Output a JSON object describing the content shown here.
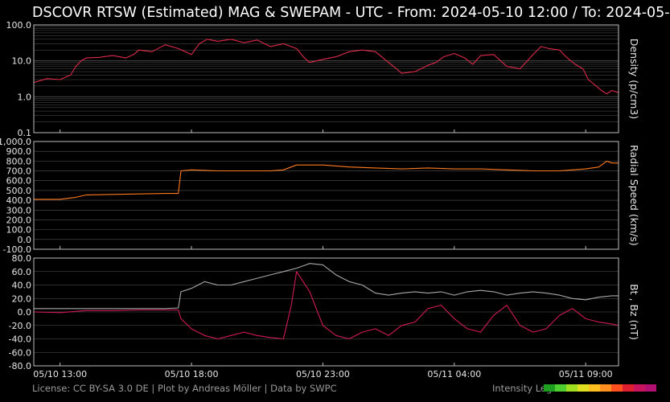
{
  "title": "DSCOVR RTSW (Estimated) MAG & SWEPAM - UTC - From: 2024-05-10 12:00  /  To: 2024-05-",
  "footer": "License: CC BY-SA 3.0 DE | Plot by Andreas Möller | Data by SWPC",
  "legend": {
    "label": "Intensity Legend:",
    "colors": [
      "#1f9f1f",
      "#4fcf2f",
      "#9fdf1f",
      "#dfdf1f",
      "#ffbf1f",
      "#ff8f1f",
      "#ff4f1f",
      "#df1f2f",
      "#c8145f",
      "#b0106f"
    ]
  },
  "colors": {
    "background": "#000000",
    "grid": "#555555",
    "frame": "#bdbdbd",
    "bt": "#a8a8a8"
  },
  "chart_data": [
    {
      "type": "line",
      "panel": "density",
      "ylabel": "Density (p/cm3)",
      "yscale": "log",
      "ylim": [
        0.1,
        100
      ],
      "yticks": [
        "100.0",
        "10.0",
        "1.0",
        "0.1"
      ],
      "xlim_hours": [
        12,
        34.25
      ],
      "series": [
        {
          "points": [
            [
              12.0,
              2.5
            ],
            [
              12.5,
              3.2
            ],
            [
              13.0,
              3.0
            ],
            [
              13.4,
              4.0
            ],
            [
              13.6,
              7.0
            ],
            [
              13.8,
              10.0
            ],
            [
              14.0,
              12.0
            ],
            [
              14.5,
              12.5
            ],
            [
              15.0,
              14.0
            ],
            [
              15.5,
              12.0
            ],
            [
              15.8,
              15.0
            ],
            [
              16.0,
              20.0
            ],
            [
              16.5,
              18.0
            ],
            [
              17.0,
              28.0
            ],
            [
              17.5,
              22.0
            ],
            [
              18.0,
              15.0
            ],
            [
              18.3,
              30.0
            ],
            [
              18.6,
              40.0
            ],
            [
              19.0,
              35.0
            ],
            [
              19.5,
              40.0
            ],
            [
              20.0,
              32.0
            ],
            [
              20.5,
              38.0
            ],
            [
              21.0,
              25.0
            ],
            [
              21.5,
              30.0
            ],
            [
              22.0,
              22.0
            ],
            [
              22.3,
              12.0
            ],
            [
              22.5,
              9.0
            ],
            [
              23.0,
              11.0
            ],
            [
              23.5,
              13.0
            ],
            [
              24.0,
              18.0
            ],
            [
              24.5,
              20.0
            ],
            [
              25.0,
              18.0
            ],
            [
              25.5,
              9.0
            ],
            [
              25.8,
              6.0
            ],
            [
              26.0,
              4.5
            ],
            [
              26.5,
              5.0
            ],
            [
              27.0,
              7.5
            ],
            [
              27.3,
              9.0
            ],
            [
              27.6,
              13.0
            ],
            [
              28.0,
              16.0
            ],
            [
              28.4,
              12.0
            ],
            [
              28.7,
              8.0
            ],
            [
              29.0,
              14.0
            ],
            [
              29.5,
              15.0
            ],
            [
              30.0,
              7.0
            ],
            [
              30.5,
              6.0
            ],
            [
              31.0,
              15.0
            ],
            [
              31.3,
              25.0
            ],
            [
              31.6,
              22.0
            ],
            [
              32.0,
              20.0
            ],
            [
              32.3,
              12.0
            ],
            [
              32.6,
              8.0
            ],
            [
              32.9,
              6.0
            ],
            [
              33.1,
              3.0
            ],
            [
              33.4,
              2.0
            ],
            [
              33.6,
              1.5
            ],
            [
              33.8,
              1.2
            ],
            [
              34.0,
              1.5
            ],
            [
              34.25,
              1.3
            ]
          ]
        }
      ]
    },
    {
      "type": "line",
      "panel": "speed",
      "ylabel": "Radial Speed (km/s)",
      "ylim": [
        -100,
        1000
      ],
      "yticks": [
        "1,000.0",
        "900.0",
        "800.0",
        "700.0",
        "600.0",
        "500.0",
        "400.0",
        "300.0",
        "200.0",
        "100.0",
        "0.0",
        "-100.0"
      ],
      "xlim_hours": [
        12,
        34.25
      ],
      "series": [
        {
          "points": [
            [
              12.0,
              410
            ],
            [
              13.0,
              410
            ],
            [
              13.6,
              430
            ],
            [
              14.0,
              455
            ],
            [
              15.0,
              460
            ],
            [
              16.0,
              465
            ],
            [
              17.0,
              470
            ],
            [
              17.5,
              470
            ],
            [
              17.6,
              700
            ],
            [
              18.0,
              710
            ],
            [
              19.0,
              700
            ],
            [
              20.0,
              700
            ],
            [
              21.0,
              700
            ],
            [
              21.5,
              710
            ],
            [
              22.0,
              760
            ],
            [
              23.0,
              760
            ],
            [
              24.0,
              740
            ],
            [
              25.0,
              730
            ],
            [
              26.0,
              720
            ],
            [
              27.0,
              730
            ],
            [
              28.0,
              720
            ],
            [
              29.0,
              720
            ],
            [
              30.0,
              710
            ],
            [
              31.0,
              700
            ],
            [
              32.0,
              700
            ],
            [
              32.5,
              710
            ],
            [
              33.0,
              720
            ],
            [
              33.5,
              740
            ],
            [
              33.8,
              800
            ],
            [
              34.0,
              780
            ],
            [
              34.25,
              780
            ]
          ]
        }
      ]
    },
    {
      "type": "line",
      "panel": "magnetic",
      "ylabel": "Bt , Bz (nT)",
      "ylim": [
        -80,
        80
      ],
      "yticks": [
        "80.0",
        "60.0",
        "40.0",
        "20.0",
        "0.0",
        "-20.0",
        "-40.0",
        "-60.0",
        "-80.0"
      ],
      "xlim_hours": [
        12,
        34.25
      ],
      "series": [
        {
          "name": "Bt",
          "points": [
            [
              12.0,
              5
            ],
            [
              13.0,
              5
            ],
            [
              14.0,
              5
            ],
            [
              15.0,
              5
            ],
            [
              16.0,
              5
            ],
            [
              17.0,
              5
            ],
            [
              17.5,
              6
            ],
            [
              17.6,
              30
            ],
            [
              18.0,
              35
            ],
            [
              18.5,
              45
            ],
            [
              19.0,
              40
            ],
            [
              19.5,
              40
            ],
            [
              20.0,
              45
            ],
            [
              20.5,
              50
            ],
            [
              21.0,
              55
            ],
            [
              21.5,
              60
            ],
            [
              22.0,
              65
            ],
            [
              22.5,
              72
            ],
            [
              23.0,
              70
            ],
            [
              23.5,
              55
            ],
            [
              24.0,
              45
            ],
            [
              24.5,
              40
            ],
            [
              25.0,
              28
            ],
            [
              25.5,
              25
            ],
            [
              26.0,
              28
            ],
            [
              26.5,
              30
            ],
            [
              27.0,
              28
            ],
            [
              27.5,
              30
            ],
            [
              28.0,
              25
            ],
            [
              28.5,
              30
            ],
            [
              29.0,
              32
            ],
            [
              29.5,
              30
            ],
            [
              30.0,
              25
            ],
            [
              30.5,
              28
            ],
            [
              31.0,
              30
            ],
            [
              31.5,
              28
            ],
            [
              32.0,
              25
            ],
            [
              32.5,
              20
            ],
            [
              33.0,
              18
            ],
            [
              33.5,
              22
            ],
            [
              34.0,
              24
            ],
            [
              34.25,
              24
            ]
          ]
        },
        {
          "name": "Bz",
          "points": [
            [
              12.0,
              0
            ],
            [
              13.0,
              -1
            ],
            [
              14.0,
              2
            ],
            [
              15.0,
              2
            ],
            [
              16.0,
              3
            ],
            [
              17.0,
              3
            ],
            [
              17.5,
              3
            ],
            [
              17.6,
              -10
            ],
            [
              18.0,
              -25
            ],
            [
              18.5,
              -35
            ],
            [
              19.0,
              -40
            ],
            [
              19.5,
              -35
            ],
            [
              20.0,
              -30
            ],
            [
              20.5,
              -35
            ],
            [
              21.0,
              -38
            ],
            [
              21.5,
              -40
            ],
            [
              21.8,
              10
            ],
            [
              22.0,
              60
            ],
            [
              22.5,
              30
            ],
            [
              23.0,
              -20
            ],
            [
              23.5,
              -35
            ],
            [
              24.0,
              -40
            ],
            [
              24.5,
              -30
            ],
            [
              25.0,
              -25
            ],
            [
              25.5,
              -35
            ],
            [
              26.0,
              -20
            ],
            [
              26.5,
              -15
            ],
            [
              27.0,
              5
            ],
            [
              27.5,
              10
            ],
            [
              28.0,
              -10
            ],
            [
              28.5,
              -25
            ],
            [
              29.0,
              -30
            ],
            [
              29.5,
              -5
            ],
            [
              30.0,
              10
            ],
            [
              30.5,
              -20
            ],
            [
              31.0,
              -30
            ],
            [
              31.5,
              -25
            ],
            [
              32.0,
              -5
            ],
            [
              32.5,
              5
            ],
            [
              33.0,
              -10
            ],
            [
              33.5,
              -15
            ],
            [
              34.0,
              -18
            ],
            [
              34.25,
              -20
            ]
          ]
        }
      ]
    }
  ],
  "x_axis": {
    "ticks": [
      {
        "hour": 13,
        "label": "05/10 13:00"
      },
      {
        "hour": 18,
        "label": "05/10 18:00"
      },
      {
        "hour": 23,
        "label": "05/10 23:00"
      },
      {
        "hour": 28,
        "label": "05/11 04:00"
      },
      {
        "hour": 33,
        "label": "05/11 09:00"
      }
    ]
  }
}
